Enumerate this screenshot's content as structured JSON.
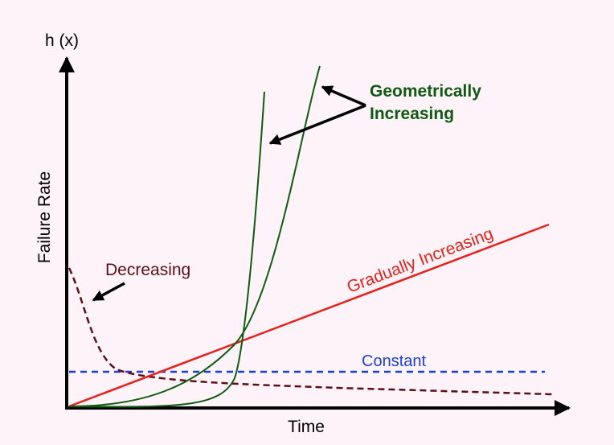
{
  "chart_data": {
    "type": "line",
    "y_axis_title": "h (x)",
    "ylabel": "Failure Rate",
    "xlabel": "Time",
    "annotations": {
      "geometric": [
        "Geometrically",
        "Increasing"
      ],
      "gradual": "Gradually Increasing",
      "constant": "Constant",
      "decreasing": "Decreasing"
    },
    "colors": {
      "background": "#fdf3f8",
      "axis": "#000000",
      "geometric": "#0f5a12",
      "gradual": "#e8201a",
      "constant": "#1a3fd6",
      "decreasing": "#5c0f16",
      "arrow": "#000000"
    }
  }
}
